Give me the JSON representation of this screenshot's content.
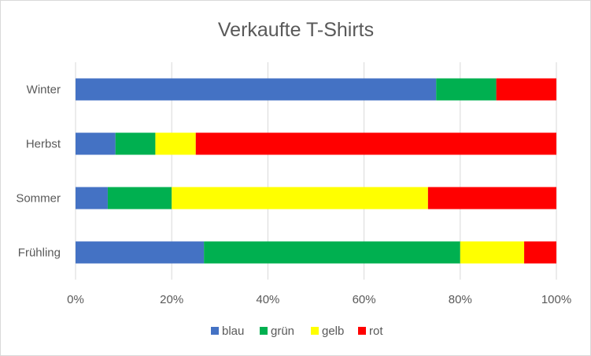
{
  "chart_data": {
    "type": "bar",
    "orientation": "horizontal",
    "stacking": "percent",
    "title": "Verkaufte T-Shirts",
    "xlabel": "",
    "ylabel": "",
    "categories": [
      "Winter",
      "Herbst",
      "Sommer",
      "Frühling"
    ],
    "series": [
      {
        "name": "blau",
        "color": "#4472C4",
        "values": [
          75.0,
          8.3,
          6.7,
          26.7
        ]
      },
      {
        "name": "grün",
        "color": "#00B050",
        "values": [
          12.5,
          8.3,
          13.3,
          53.3
        ]
      },
      {
        "name": "gelb",
        "color": "#FFFF00",
        "values": [
          0.0,
          8.4,
          53.3,
          13.3
        ]
      },
      {
        "name": "rot",
        "color": "#FF0000",
        "values": [
          12.5,
          75.0,
          26.7,
          6.7
        ]
      }
    ],
    "xlim": [
      0,
      100
    ],
    "xticks": [
      "0%",
      "20%",
      "40%",
      "60%",
      "80%",
      "100%"
    ],
    "grid": true,
    "legend_position": "bottom"
  }
}
